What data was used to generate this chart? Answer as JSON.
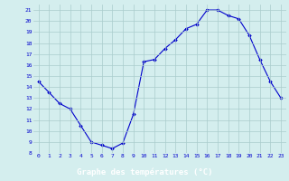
{
  "x": [
    0,
    1,
    2,
    3,
    4,
    5,
    6,
    7,
    8,
    9,
    10,
    11,
    12,
    13,
    14,
    15,
    16,
    17,
    18,
    19,
    20,
    21,
    22,
    23
  ],
  "y": [
    14.5,
    13.5,
    12.5,
    12.0,
    10.5,
    9.0,
    8.7,
    8.4,
    8.9,
    11.5,
    16.3,
    16.5,
    17.5,
    18.3,
    19.3,
    19.7,
    21.0,
    21.0,
    20.5,
    20.2,
    18.7,
    16.5,
    14.5,
    13.0
  ],
  "line_color": "#0000cc",
  "marker": "D",
  "markersize": 1.8,
  "linewidth": 0.8,
  "bg_color": "#d4eeee",
  "grid_color": "#aacccc",
  "xlabel": "Graphe des températures (°C)",
  "xlabel_bg": "#0000cc",
  "xlabel_color": "#ffffff",
  "ylim": [
    8,
    21.5
  ],
  "yticks": [
    8,
    9,
    10,
    11,
    12,
    13,
    14,
    15,
    16,
    17,
    18,
    19,
    20,
    21
  ],
  "xticks": [
    0,
    1,
    2,
    3,
    4,
    5,
    6,
    7,
    8,
    9,
    10,
    11,
    12,
    13,
    14,
    15,
    16,
    17,
    18,
    19,
    20,
    21,
    22,
    23
  ],
  "tick_fontsize": 4.5,
  "xlabel_fontsize": 6.5
}
